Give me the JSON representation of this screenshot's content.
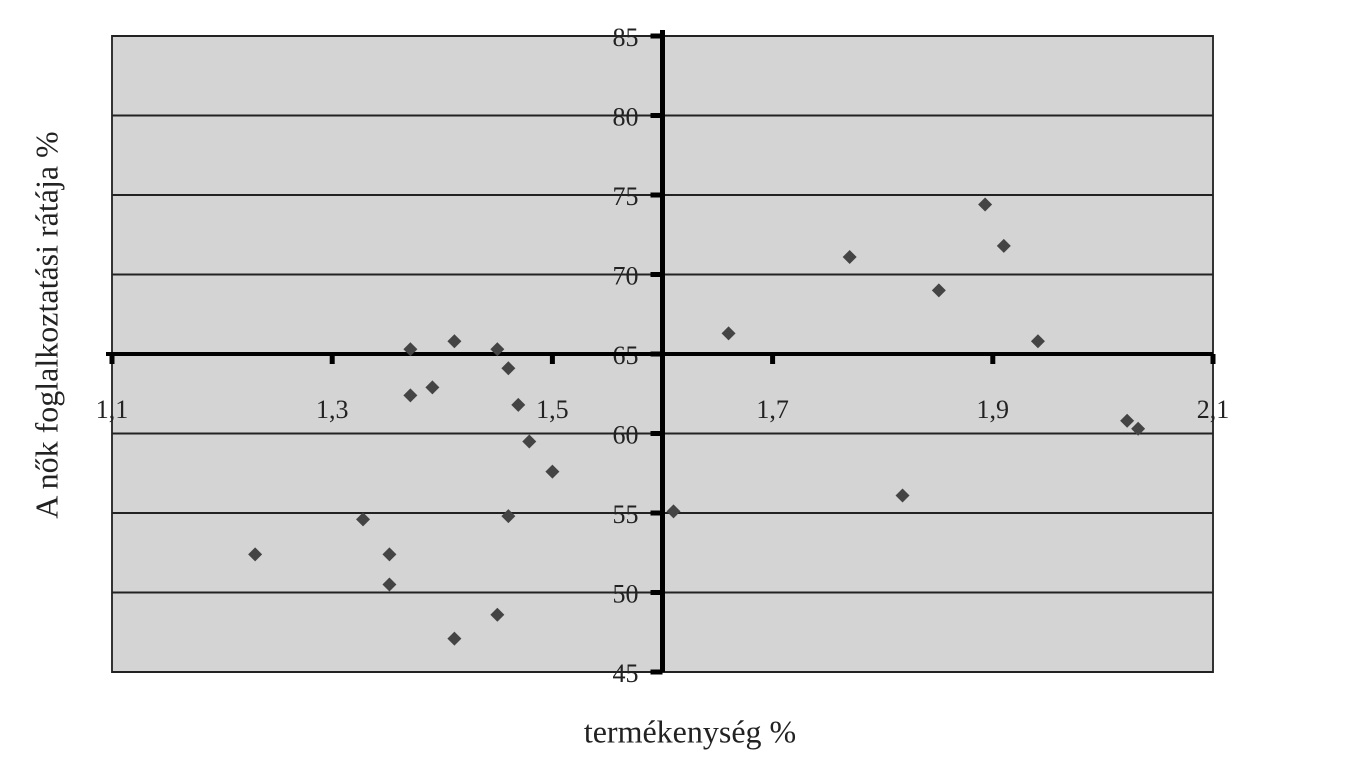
{
  "chart_data": {
    "type": "scatter",
    "x_label": "termékenység %",
    "y_label": "A nők foglalkoztatási rátája %",
    "xlim": [
      1.1,
      2.1
    ],
    "xticks": [
      {
        "value": 1.1,
        "label": "1,1"
      },
      {
        "value": 1.3,
        "label": "1,3"
      },
      {
        "value": 1.5,
        "label": "1,5"
      },
      {
        "value": 1.7,
        "label": "1,7"
      },
      {
        "value": 1.9,
        "label": "1,9"
      },
      {
        "value": 2.1,
        "label": "2,1"
      }
    ],
    "ylim": [
      45,
      85
    ],
    "yticks": [
      45,
      50,
      55,
      60,
      65,
      70,
      75,
      80,
      85
    ],
    "x_axis_crosses": 65,
    "y_axis_crosses": 1.6,
    "grid": true,
    "color": "#444444",
    "background": "#d4d4d4",
    "x": [
      1.23,
      1.328,
      1.352,
      1.352,
      1.371,
      1.371,
      1.391,
      1.411,
      1.411,
      1.45,
      1.45,
      1.46,
      1.46,
      1.469,
      1.479,
      1.5,
      1.61,
      1.66,
      1.77,
      1.818,
      1.851,
      1.893,
      1.91,
      1.941,
      2.022,
      2.032
    ],
    "values": [
      52.4,
      54.6,
      52.4,
      50.5,
      65.3,
      62.4,
      62.9,
      65.8,
      47.1,
      65.3,
      48.6,
      64.1,
      54.8,
      61.8,
      59.5,
      57.6,
      55.1,
      66.3,
      71.1,
      56.1,
      69.0,
      74.4,
      71.8,
      65.8,
      60.8,
      60.3
    ]
  }
}
